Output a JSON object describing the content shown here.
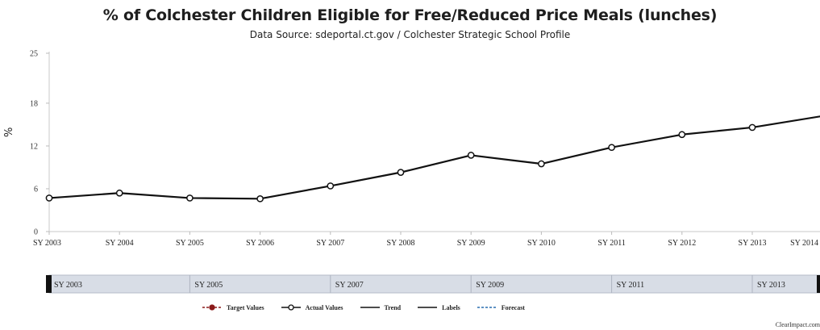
{
  "chart_data": {
    "type": "line",
    "title": "% of Colchester Children Eligible for Free/Reduced Price Meals (lunches)",
    "subtitle": "Data Source: sdeportal.ct.gov / Colchester Strategic School Profile",
    "ylabel": "%",
    "xlabel": "",
    "ylim": [
      0,
      25
    ],
    "yticks": [
      "0",
      "6",
      "12",
      "18",
      "25"
    ],
    "categories": [
      "SY 2003",
      "SY 2004",
      "SY 2005",
      "SY 2006",
      "SY 2007",
      "SY 2008",
      "SY 2009",
      "SY 2010",
      "SY 2011",
      "SY 2012",
      "SY 2013",
      "SY 2014"
    ],
    "series": [
      {
        "name": "Actual Values",
        "values": [
          4.7,
          5.4,
          4.7,
          4.6,
          6.4,
          8.3,
          10.7,
          9.5,
          11.8,
          13.6,
          14.6,
          16.2
        ],
        "color": "#111111"
      }
    ],
    "navigator_labels": [
      "SY 2003",
      "SY 2005",
      "SY 2007",
      "SY 2009",
      "SY 2011",
      "SY 2013"
    ],
    "legend": [
      {
        "label": "Target Values",
        "style": "target",
        "color": "#8b1a1a"
      },
      {
        "label": "Actual Values",
        "style": "actual",
        "color": "#111111"
      },
      {
        "label": "Trend",
        "style": "solid",
        "color": "#111111"
      },
      {
        "label": "Labels",
        "style": "solid",
        "color": "#111111"
      },
      {
        "label": "Forecast",
        "style": "dashed",
        "color": "#2a6fb0"
      }
    ],
    "legend_position": "bottom",
    "grid": false
  },
  "credit": "ClearImpact.com"
}
